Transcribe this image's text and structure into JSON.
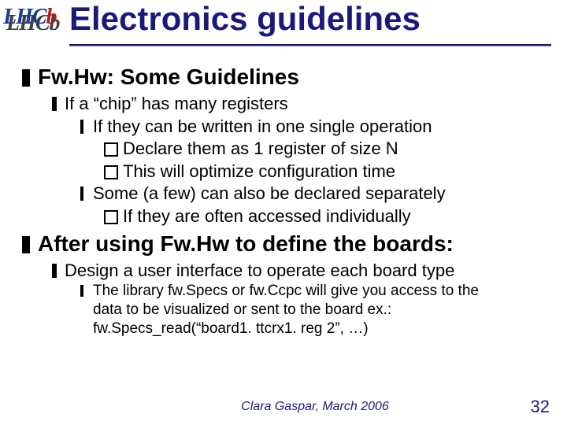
{
  "colors": {
    "title": "#1a1a7a",
    "text": "#000000",
    "background": "#ffffff",
    "rule": "#1a1a7a",
    "logo_main": "#1a3d8f",
    "logo_accent": "#b02020",
    "logo_shadow": "#404040"
  },
  "fonts": {
    "body_family": "Comic Sans MS",
    "logo_family": "Georgia",
    "title_size_pt": 32,
    "lvl1_size_pt": 21,
    "lvl2_size_pt": 17,
    "lvl3_size_pt": 17,
    "lvl4_size_pt": 17,
    "lvl3s_size_pt": 14
  },
  "logo": {
    "text": "LHCb"
  },
  "title": "Electronics guidelines",
  "bullets": {
    "sec1": {
      "heading": "Fw.Hw: Some Guidelines",
      "b1": "If a “chip” has many registers",
      "b1_1": "If they can be written in one single operation",
      "b1_1_a": "Declare them as 1 register of size N",
      "b1_1_b": "This will optimize configuration time",
      "b1_2": "Some (a few) can also be declared separately",
      "b1_2_a": "If they are often accessed individually"
    },
    "sec2": {
      "heading": "After using Fw.Hw to define the boards:",
      "b1": "Design a user interface to operate each board type",
      "b1_1_l1": "The library fw.Specs or fw.Ccpc will give you access to the",
      "b1_1_l2": "data to be visualized or sent to the board ex.:",
      "b1_1_l3": "fw.Specs_read(“board1. ttcrx1. reg 2”, …)"
    }
  },
  "footer": {
    "author": "Clara Gaspar, March 2006",
    "page": "32"
  }
}
